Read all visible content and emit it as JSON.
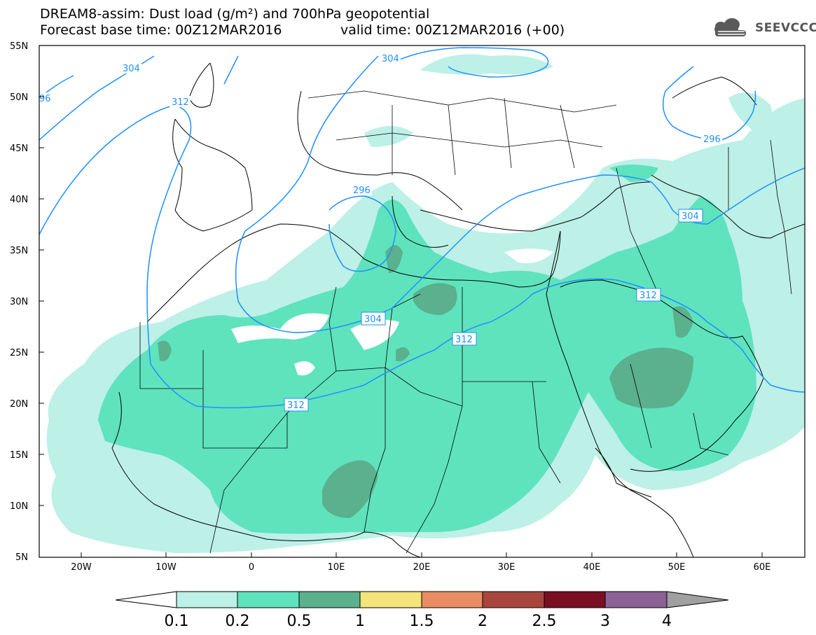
{
  "header": {
    "title_line1": "DREAM8-assim: Dust load (g/m²) and 700hPa geopotential",
    "title_line2": "Forecast base time: 00Z12MAR2016",
    "valid_time": "valid time: 00Z12MAR2016 (+00)",
    "logo_text": "SEEVCCC"
  },
  "map": {
    "lat_labels": [
      "55N",
      "50N",
      "45N",
      "40N",
      "35N",
      "30N",
      "25N",
      "20N",
      "15N",
      "10N",
      "5N"
    ],
    "lon_labels": [
      "20W",
      "10W",
      "0",
      "10E",
      "20E",
      "30E",
      "40E",
      "50E",
      "60E"
    ],
    "contour_labels": [
      "304",
      "96",
      "312",
      "304",
      "296",
      "296",
      "304",
      "304",
      "312",
      "312",
      "312"
    ]
  },
  "colorbar": {
    "labels": [
      "0.1",
      "0.2",
      "0.5",
      "1",
      "1.5",
      "2",
      "2.5",
      "3",
      "4"
    ],
    "colors": [
      "#ffffff",
      "#bdf0e6",
      "#5fe3bd",
      "#5bb08e",
      "#f4e57a",
      "#ea8c63",
      "#a8463d",
      "#7a0e22",
      "#8c6196",
      "#a0a0a0"
    ]
  },
  "colors": {
    "dust_light": "#bdf0e6",
    "dust_mid": "#5fe3bd",
    "dust_dark": "#5bb08e",
    "contour": "#1e90ff"
  }
}
